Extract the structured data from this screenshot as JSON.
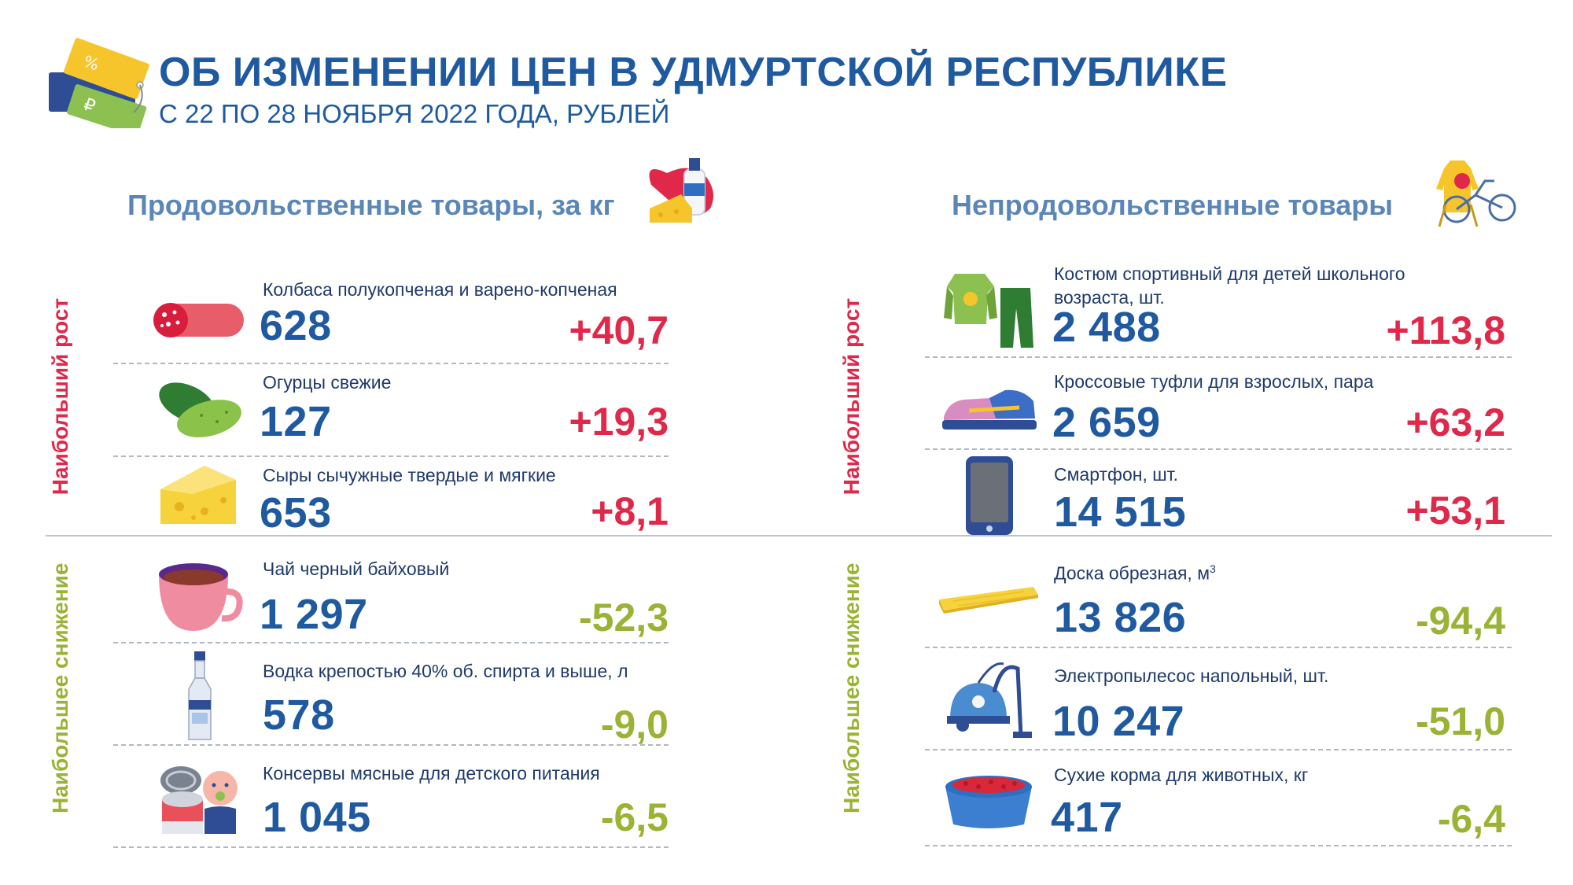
{
  "header": {
    "title": "ОБ ИЗМЕНЕНИИ ЦЕН В УДМУРТСКОЙ РЕСПУБЛИКЕ",
    "subtitle": "С 22 ПО 28 НОЯБРЯ 2022 ГОДА, РУБЛЕЙ"
  },
  "food": {
    "heading": "Продовольственные товары, за кг",
    "label_rise": "Наибольший рост",
    "label_fall": "Наибольшее снижение",
    "items": [
      {
        "name": "Колбаса полукопченая и варено-копченая",
        "price": "628",
        "change": "+40,7"
      },
      {
        "name": "Огурцы свежие",
        "price": "127",
        "change": "+19,3"
      },
      {
        "name": "Сыры сычужные твердые и мягкие",
        "price": "653",
        "change": "+8,1"
      },
      {
        "name": "Чай черный байховый",
        "price": "1 297",
        "change": "-52,3"
      },
      {
        "name": "Водка крепостью 40% об. спирта и выше, л",
        "price": "578",
        "change": "-9,0"
      },
      {
        "name": "Консервы мясные для детского питания",
        "price": "1 045",
        "change": "-6,5"
      }
    ]
  },
  "nonfood": {
    "heading": "Непродовольственные товары",
    "label_rise": "Наибольший рост",
    "label_fall": "Наибольшее снижение",
    "items": [
      {
        "name_line1": "Костюм спортивный для детей школьного",
        "name_line2": "возраста, шт.",
        "price": "2 488",
        "change": "+113,8"
      },
      {
        "name": "Кроссовые туфли для взрослых, пара",
        "price": "2 659",
        "change": "+63,2"
      },
      {
        "name": "Смартфон, шт.",
        "price": "14 515",
        "change": "+53,1"
      },
      {
        "name": "Доска обрезная, м",
        "name_sup": "3",
        "price": "13 826",
        "change": "-94,4"
      },
      {
        "name": "Электропылесос напольный, шт.",
        "price": "10 247",
        "change": "-51,0"
      },
      {
        "name": "Сухие корма для животных,  кг",
        "price": "417",
        "change": "-6,4"
      }
    ]
  },
  "colors": {
    "title_blue": "#1f5aa0",
    "rise_red": "#e0284a",
    "fall_green": "#9ab334",
    "section_blue": "#5b87b8"
  },
  "icons": {
    "logo": "price-tags-icon",
    "food_heading": "food-groceries-icon",
    "nonfood_heading": "clothes-bicycle-icon"
  }
}
